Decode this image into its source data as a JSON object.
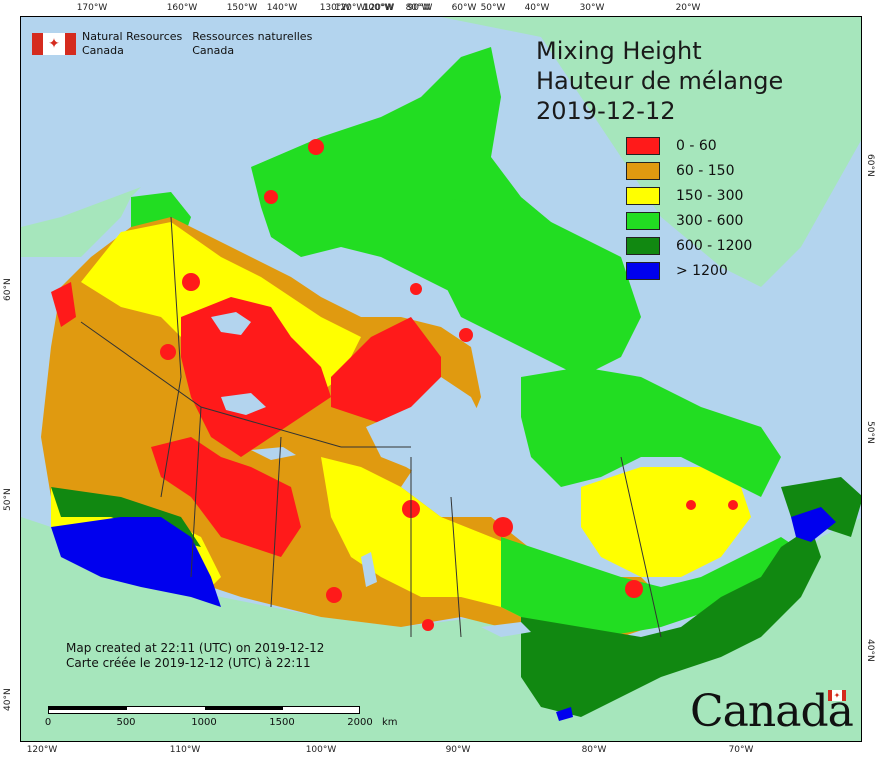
{
  "title": {
    "line1": "Mixing Height",
    "line2": "Hauteur de mélange",
    "date": "2019-12-12"
  },
  "legend": [
    {
      "label": "0 - 60",
      "color": "#ff1a1a"
    },
    {
      "label": "60 - 150",
      "color": "#e09a10"
    },
    {
      "label": "150 - 300",
      "color": "#ffff00"
    },
    {
      "label": "300 - 600",
      "color": "#22dd22"
    },
    {
      "label": "600 - 1200",
      "color": "#118811"
    },
    {
      "label": "> 1200",
      "color": "#0000ee"
    }
  ],
  "agency": {
    "en_line1": "Natural Resources",
    "en_line2": "Canada",
    "fr_line1": "Ressources naturelles",
    "fr_line2": "Canada"
  },
  "created": {
    "en": "Map created at 22:11 (UTC) on 2019-12-12",
    "fr": "Carte créée le 2019-12-12 (UTC) à 22:11"
  },
  "scalebar": {
    "labels": [
      "0",
      "500",
      "1000",
      "1500",
      "2000"
    ],
    "unit": "km"
  },
  "wordmark": "Canada",
  "ticks": {
    "top": [
      "170°W",
      "160°W",
      "150°W",
      "140°W",
      "130°W",
      "120°W",
      "100°W",
      "90°W",
      "80°W",
      "60°W",
      "50°W",
      "40°W",
      "30°W",
      "20°W"
    ],
    "bottom": [
      "120°W",
      "110°W",
      "100°W",
      "90°W",
      "80°W",
      "70°W"
    ],
    "left": [
      "60°N",
      "50°N",
      "40°N"
    ],
    "right": [
      "60°N",
      "50°N",
      "40°N"
    ]
  },
  "colors": {
    "ocean": "#b3d4ee",
    "land_other": "#a6e6bc",
    "red": "#ff1a1a",
    "orange": "#e09a10",
    "yellow": "#ffff00",
    "green": "#22dd22",
    "dark_green": "#118811",
    "blue": "#0000ee",
    "lake": "#b3d4ee"
  }
}
